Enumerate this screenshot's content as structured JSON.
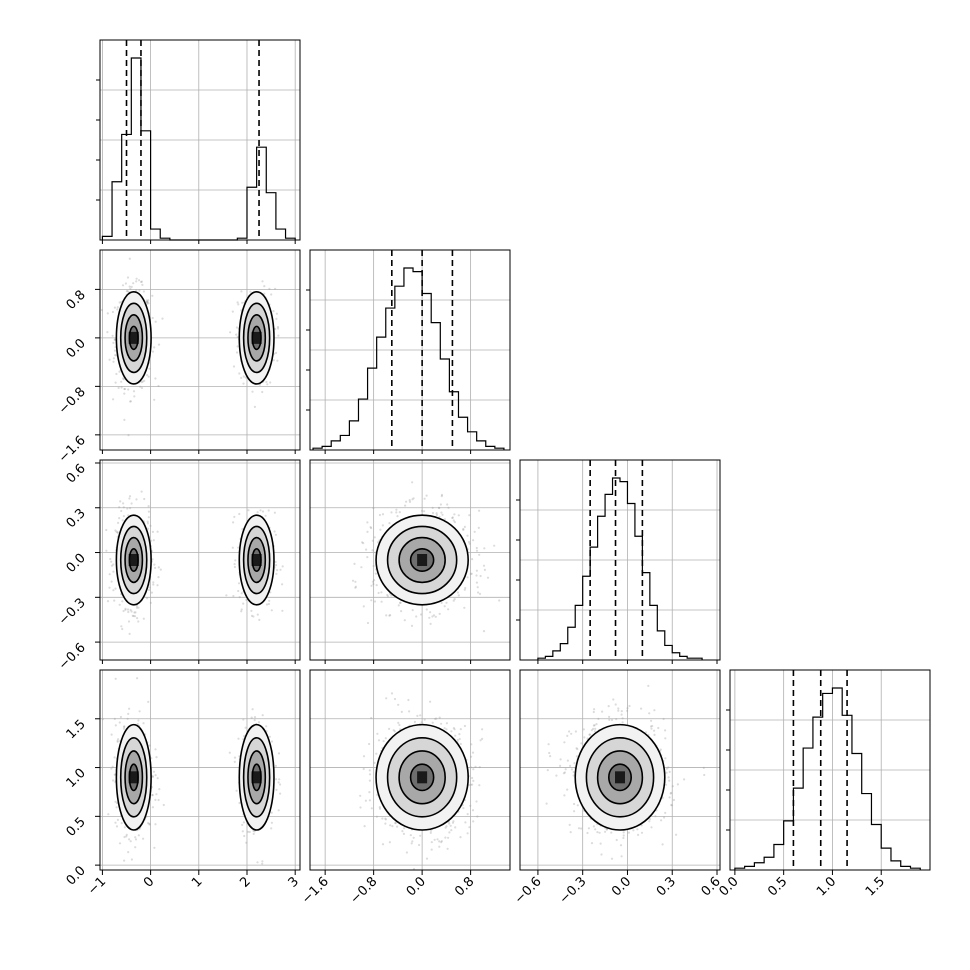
{
  "chart_data": {
    "type": "corner",
    "parameters": [
      "p0",
      "p1",
      "p2",
      "p3"
    ],
    "axes": {
      "p0": {
        "range": [
          -1.05,
          3.1
        ],
        "ticks": [
          -1,
          0,
          1,
          2,
          3
        ],
        "tick_labels": [
          "−1",
          "0",
          "1",
          "2",
          "3"
        ]
      },
      "p1": {
        "range": [
          -1.85,
          1.45
        ],
        "ticks": [
          -1.6,
          -0.8,
          0.0,
          0.8
        ],
        "tick_labels": [
          "−1.6",
          "−0.8",
          "0.0",
          "0.8"
        ]
      },
      "p2": {
        "range": [
          -0.72,
          0.62
        ],
        "ticks": [
          -0.6,
          -0.3,
          0.0,
          0.3,
          0.6
        ],
        "tick_labels": [
          "−0.6",
          "−0.3",
          "0.0",
          "0.3",
          "0.6"
        ]
      },
      "p3": {
        "range": [
          -0.05,
          2.0
        ],
        "ticks": [
          0.0,
          0.5,
          1.0,
          1.5
        ],
        "tick_labels": [
          "0.0",
          "0.5",
          "1.0",
          "1.5"
        ]
      }
    },
    "histograms": [
      {
        "param": "p0",
        "bins": [
          -1.0,
          -0.8,
          -0.6,
          -0.4,
          -0.2,
          0.0,
          0.2,
          0.4,
          0.6,
          0.8,
          1.0,
          1.2,
          1.4,
          1.6,
          1.8,
          2.0,
          2.2,
          2.4,
          2.6,
          2.8,
          3.0
        ],
        "counts": [
          0.02,
          0.32,
          0.58,
          1.0,
          0.6,
          0.06,
          0.01,
          0,
          0,
          0,
          0,
          0,
          0,
          0,
          0.01,
          0.29,
          0.51,
          0.26,
          0.06,
          0.01
        ],
        "quantiles": [
          -0.5,
          -0.2,
          2.25
        ]
      },
      {
        "param": "p1",
        "bins": [
          -1.8,
          -1.65,
          -1.5,
          -1.35,
          -1.2,
          -1.05,
          -0.9,
          -0.75,
          -0.6,
          -0.45,
          -0.3,
          -0.15,
          0.0,
          0.15,
          0.3,
          0.45,
          0.6,
          0.75,
          0.9,
          1.05,
          1.2,
          1.35
        ],
        "counts": [
          0.01,
          0.02,
          0.05,
          0.08,
          0.16,
          0.28,
          0.45,
          0.62,
          0.78,
          0.9,
          1.0,
          0.98,
          0.86,
          0.7,
          0.5,
          0.32,
          0.18,
          0.1,
          0.05,
          0.02,
          0.01
        ],
        "quantiles": [
          -0.5,
          0.0,
          0.5
        ]
      },
      {
        "param": "p2",
        "bins": [
          -0.6,
          -0.55,
          -0.5,
          -0.45,
          -0.4,
          -0.35,
          -0.3,
          -0.25,
          -0.2,
          -0.15,
          -0.1,
          -0.05,
          0.0,
          0.05,
          0.1,
          0.15,
          0.2,
          0.25,
          0.3,
          0.35,
          0.4,
          0.45,
          0.5
        ],
        "counts": [
          0.01,
          0.02,
          0.05,
          0.09,
          0.18,
          0.3,
          0.46,
          0.62,
          0.79,
          0.91,
          1.0,
          0.98,
          0.86,
          0.68,
          0.48,
          0.3,
          0.16,
          0.08,
          0.04,
          0.02,
          0.01,
          0.01
        ],
        "quantiles": [
          -0.25,
          -0.08,
          0.1
        ]
      },
      {
        "param": "p3",
        "bins": [
          0.0,
          0.1,
          0.2,
          0.3,
          0.4,
          0.5,
          0.6,
          0.7,
          0.8,
          0.9,
          1.0,
          1.1,
          1.2,
          1.3,
          1.4,
          1.5,
          1.6,
          1.7,
          1.8,
          1.9
        ],
        "counts": [
          0.01,
          0.02,
          0.04,
          0.07,
          0.14,
          0.27,
          0.45,
          0.67,
          0.84,
          0.97,
          1.0,
          0.85,
          0.64,
          0.42,
          0.25,
          0.12,
          0.05,
          0.02,
          0.01
        ],
        "quantiles": [
          0.6,
          0.88,
          1.15
        ]
      }
    ],
    "pairs": [
      {
        "x": "p0",
        "y": "p1",
        "blobs": [
          {
            "cx": -0.35,
            "cy": 0.0,
            "sx": 0.18,
            "sy": 0.38,
            "w": 0.62
          },
          {
            "cx": 2.2,
            "cy": 0.0,
            "sx": 0.18,
            "sy": 0.38,
            "w": 0.38
          }
        ]
      },
      {
        "x": "p0",
        "y": "p2",
        "blobs": [
          {
            "cx": -0.35,
            "cy": -0.05,
            "sx": 0.18,
            "sy": 0.15,
            "w": 0.62
          },
          {
            "cx": 2.2,
            "cy": -0.05,
            "sx": 0.18,
            "sy": 0.15,
            "w": 0.38
          }
        ]
      },
      {
        "x": "p0",
        "y": "p3",
        "blobs": [
          {
            "cx": -0.35,
            "cy": 0.9,
            "sx": 0.18,
            "sy": 0.27,
            "w": 0.62
          },
          {
            "cx": 2.2,
            "cy": 0.9,
            "sx": 0.18,
            "sy": 0.27,
            "w": 0.38
          }
        ]
      },
      {
        "x": "p1",
        "y": "p2",
        "blobs": [
          {
            "cx": 0.0,
            "cy": -0.05,
            "sx": 0.38,
            "sy": 0.15,
            "w": 1.0
          }
        ]
      },
      {
        "x": "p1",
        "y": "p3",
        "blobs": [
          {
            "cx": 0.0,
            "cy": 0.9,
            "sx": 0.38,
            "sy": 0.27,
            "w": 1.0
          }
        ]
      },
      {
        "x": "p2",
        "y": "p3",
        "blobs": [
          {
            "cx": -0.05,
            "cy": 0.9,
            "sx": 0.15,
            "sy": 0.27,
            "w": 1.0
          }
        ]
      }
    ],
    "contour_levels_sigma": [
      0.5,
      1.0,
      1.5,
      2.0
    ],
    "colors": {
      "points": "#9a9a9a",
      "lines": "#000000",
      "grid": "#b0b0b0"
    },
    "grid": true
  }
}
